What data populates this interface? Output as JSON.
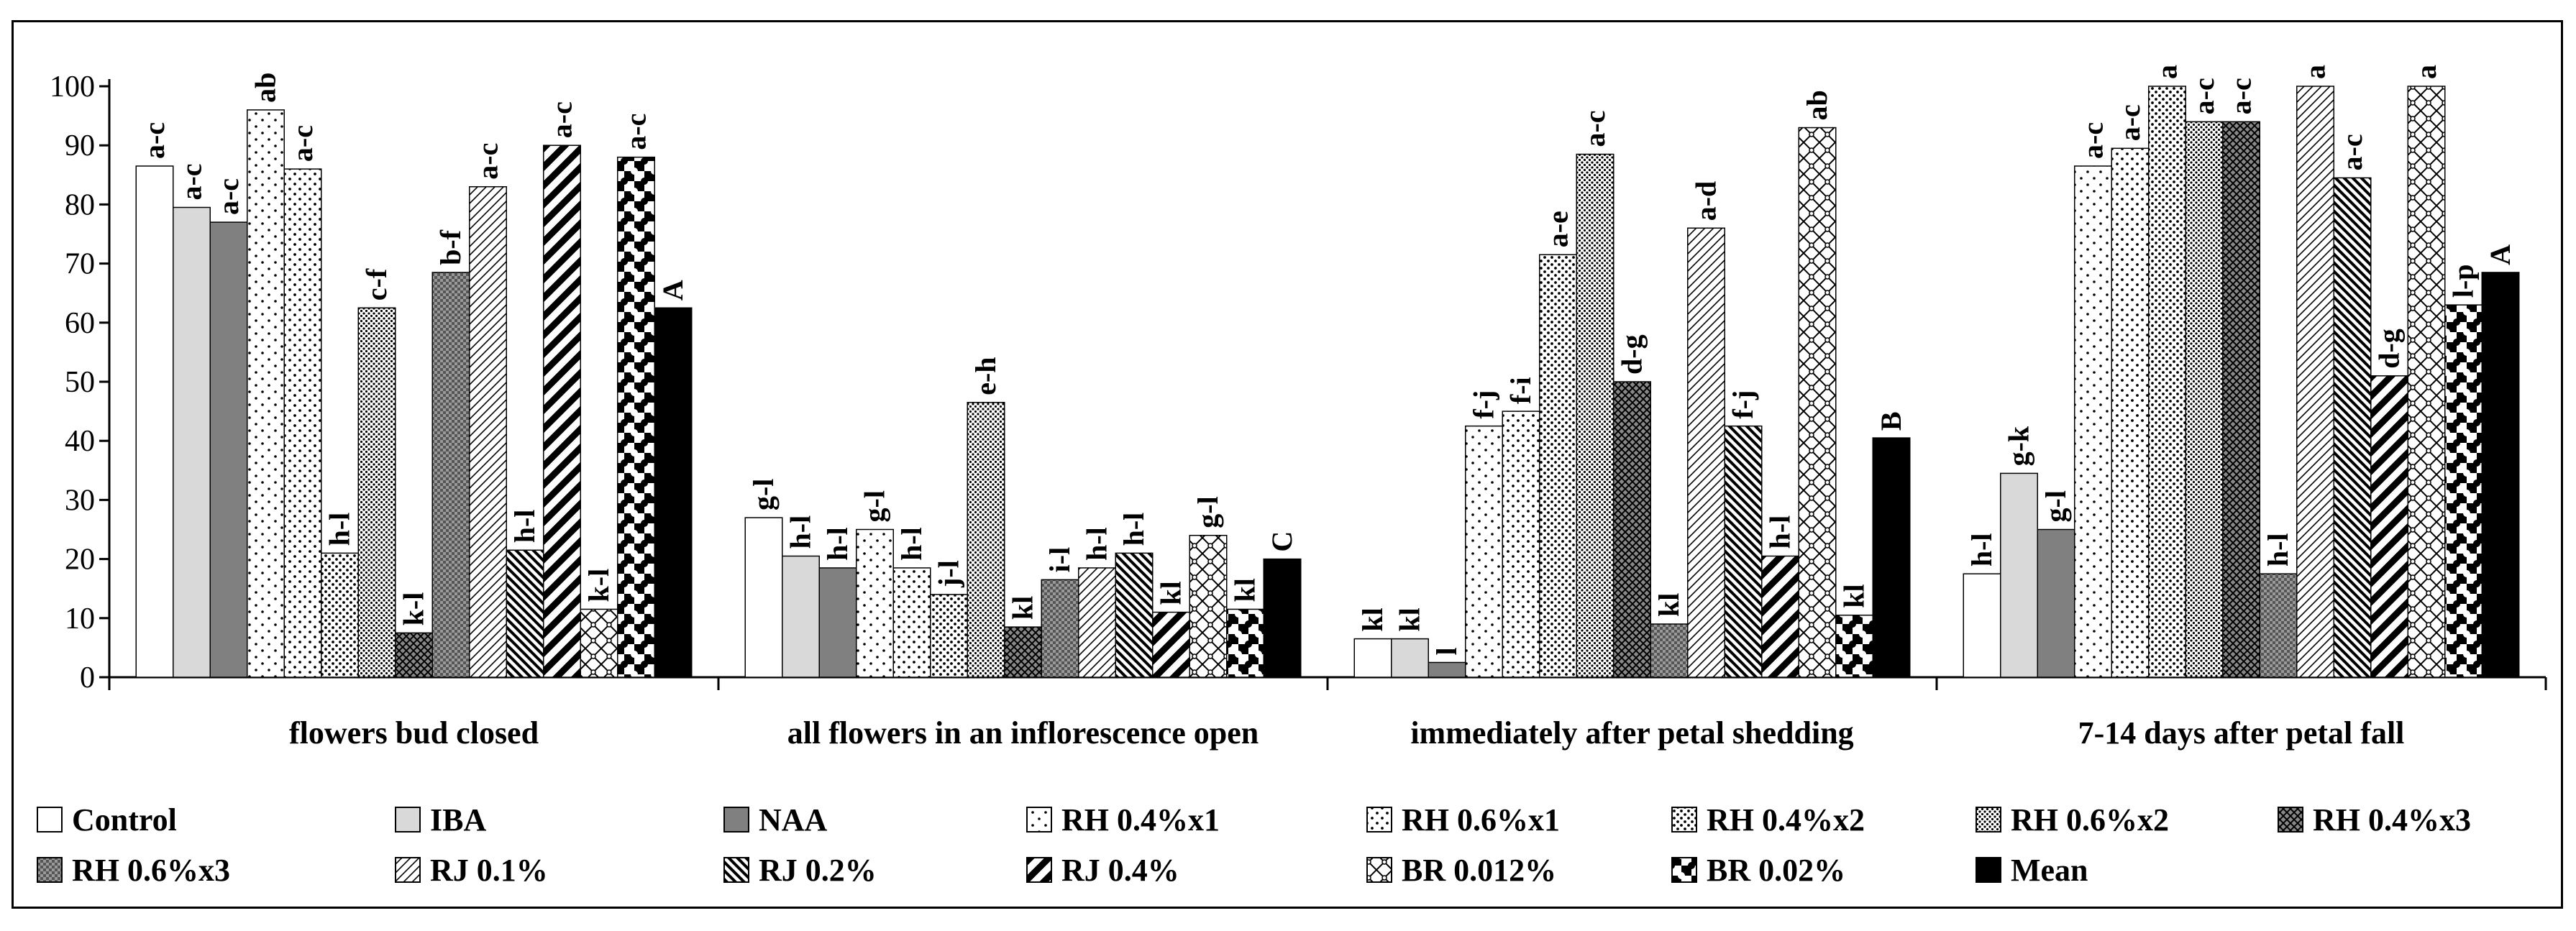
{
  "chart_data": {
    "type": "bar",
    "title": "",
    "xlabel": "",
    "ylabel": "",
    "ylim": [
      0,
      100
    ],
    "yticks": [
      "0",
      "10",
      "20",
      "30",
      "40",
      "50",
      "60",
      "70",
      "80",
      "90",
      "100"
    ],
    "categories": [
      "flowers bud closed",
      "all flowers in an inflorescence open",
      "immediately after petal shedding",
      "7-14 days after petal fall"
    ],
    "series": [
      {
        "name": "Control",
        "values": [
          86.5,
          27,
          6.5,
          17.5
        ],
        "labels": [
          "a-c",
          "g-l",
          "kl",
          "h-l"
        ]
      },
      {
        "name": "IBA",
        "values": [
          79.5,
          20.5,
          6.5,
          34.5
        ],
        "labels": [
          "a-c",
          "h-l",
          "kl",
          "g-k"
        ]
      },
      {
        "name": "NAA",
        "values": [
          77,
          18.5,
          2.5,
          25
        ],
        "labels": [
          "a-c",
          "h-l",
          "l",
          "g-l"
        ]
      },
      {
        "name": "RH 0.4%x1",
        "values": [
          96,
          25,
          42.5,
          86.5
        ],
        "labels": [
          "ab",
          "g-l",
          "f-j",
          "a-c"
        ]
      },
      {
        "name": "RH 0.6%x1",
        "values": [
          86,
          18.5,
          45,
          89.5
        ],
        "labels": [
          "a-c",
          "h-l",
          "f-i",
          "a-c"
        ]
      },
      {
        "name": "RH 0.4%x2",
        "values": [
          21,
          14,
          71.5,
          100
        ],
        "labels": [
          "h-l",
          "j-l",
          "a-e",
          "a"
        ]
      },
      {
        "name": "RH 0.6%x2",
        "values": [
          62.5,
          46.5,
          88.5,
          94
        ],
        "labels": [
          "c-f",
          "e-h",
          "a-c",
          "a-c"
        ]
      },
      {
        "name": "RH 0.4%x3",
        "values": [
          7.5,
          8.5,
          50,
          94
        ],
        "labels": [
          "k-l",
          "kl",
          "d-g",
          "a-c"
        ]
      },
      {
        "name": "RH 0.6%x3",
        "values": [
          68.5,
          16.5,
          9,
          17.5
        ],
        "labels": [
          "b-f",
          "i-l",
          "kl",
          "h-l"
        ]
      },
      {
        "name": "RJ 0.1%",
        "values": [
          83,
          18.5,
          76,
          100
        ],
        "labels": [
          "a-c",
          "h-l",
          "a-d",
          "a"
        ]
      },
      {
        "name": "RJ 0.2%",
        "values": [
          21.5,
          21,
          42.5,
          84.5
        ],
        "labels": [
          "h-l",
          "h-l",
          "f-j",
          "a-c"
        ]
      },
      {
        "name": "RJ 0.4%",
        "values": [
          90,
          11,
          20.5,
          51
        ],
        "labels": [
          "a-c",
          "kl",
          "h-l",
          "d-g"
        ]
      },
      {
        "name": "BR 0.012%",
        "values": [
          11.5,
          24,
          93,
          100
        ],
        "labels": [
          "k-l",
          "g-l",
          "ab",
          "a"
        ]
      },
      {
        "name": "BR 0.02%",
        "values": [
          88,
          11.5,
          10.5,
          63
        ],
        "labels": [
          "a-c",
          "kl",
          "kl",
          "l-p"
        ]
      },
      {
        "name": "Mean",
        "values": [
          62.5,
          20,
          40.5,
          68.5
        ],
        "labels": [
          "A",
          "C",
          "B",
          "A"
        ]
      }
    ],
    "legend_position": "bottom",
    "grid": false
  }
}
